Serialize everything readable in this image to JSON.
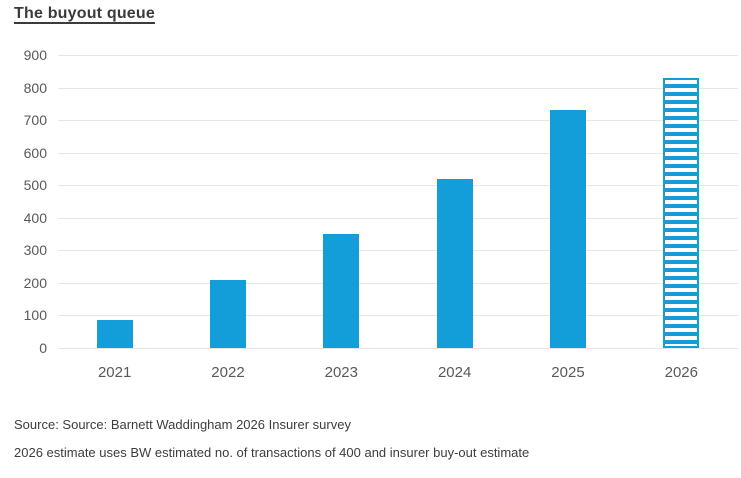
{
  "chart_data": {
    "type": "bar",
    "title": "The buyout queue",
    "categories": [
      "2021",
      "2022",
      "2023",
      "2024",
      "2025",
      "2026"
    ],
    "values": [
      85,
      210,
      350,
      520,
      730,
      830
    ],
    "ylim": [
      0,
      900
    ],
    "y_ticks": [
      0,
      100,
      200,
      300,
      400,
      500,
      600,
      700,
      800,
      900
    ],
    "xlabel": "",
    "ylabel": "",
    "grid": "horizontal",
    "legend_position": "none",
    "bar_color": "#149ED9",
    "grid_color": "#e6e6e6",
    "axis_label_color": "#595959",
    "estimated_categories": [
      "2026"
    ],
    "estimated_bar_style": "horizontal-stripes-with-solid-outline"
  },
  "footer": {
    "source_line1": "Source: Source: Barnett Waddingham 2026 Insurer survey",
    "source_line2": "2026 estimate uses BW estimated no. of transactions of 400 and insurer buy-out estimate"
  }
}
